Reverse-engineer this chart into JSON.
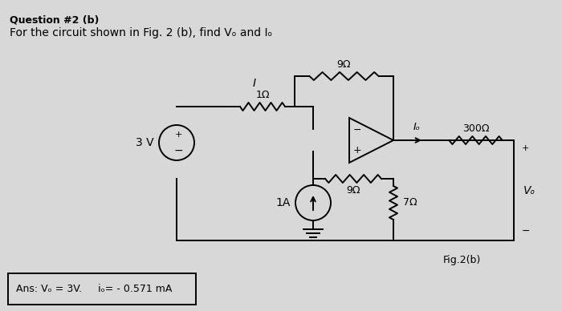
{
  "bg_color": "#d8d8d8",
  "title_line1": "Question #2 (b)",
  "title_line2": "For the circuit shown in Fig. 2 (b), find Vₒ and Iₒ",
  "fig_label": "Fig.2(b)",
  "lw": 1.4
}
